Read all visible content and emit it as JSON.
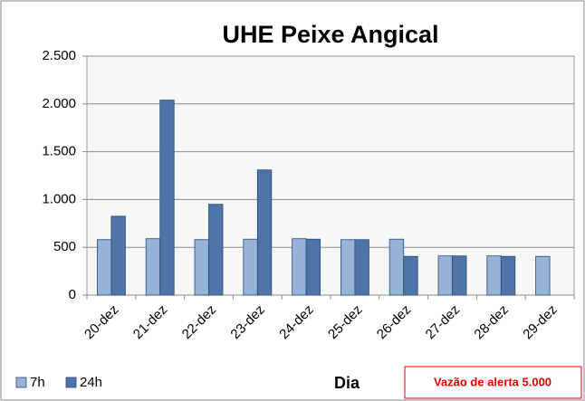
{
  "chart_data": {
    "type": "bar",
    "title": "UHE Peixe Angical",
    "x_label": "Dia",
    "annotation": "Vazão de alerta 5.000",
    "categories": [
      "20-dez",
      "21-dez",
      "22-dez",
      "23-dez",
      "24-dez",
      "25-dez",
      "26-dez",
      "27-dez",
      "28-dez",
      "29-dez"
    ],
    "series": [
      {
        "name": "7h",
        "color": "#95b3d7",
        "values": [
          580,
          590,
          580,
          585,
          590,
          580,
          585,
          410,
          410,
          405
        ]
      },
      {
        "name": "24h",
        "color": "#4f74a8",
        "values": [
          825,
          2040,
          950,
          1310,
          585,
          580,
          405,
          410,
          405,
          null
        ]
      }
    ],
    "ylim": [
      0,
      2500
    ],
    "yticks": [
      0,
      500,
      {
        "value": 1000,
        "label": "1.000"
      },
      {
        "value": 1500,
        "label": "1.500"
      },
      {
        "value": 2000,
        "label": "2.000"
      },
      {
        "value": 2500,
        "label": "2.500"
      }
    ],
    "grid": true,
    "legend": "bottom-left"
  }
}
